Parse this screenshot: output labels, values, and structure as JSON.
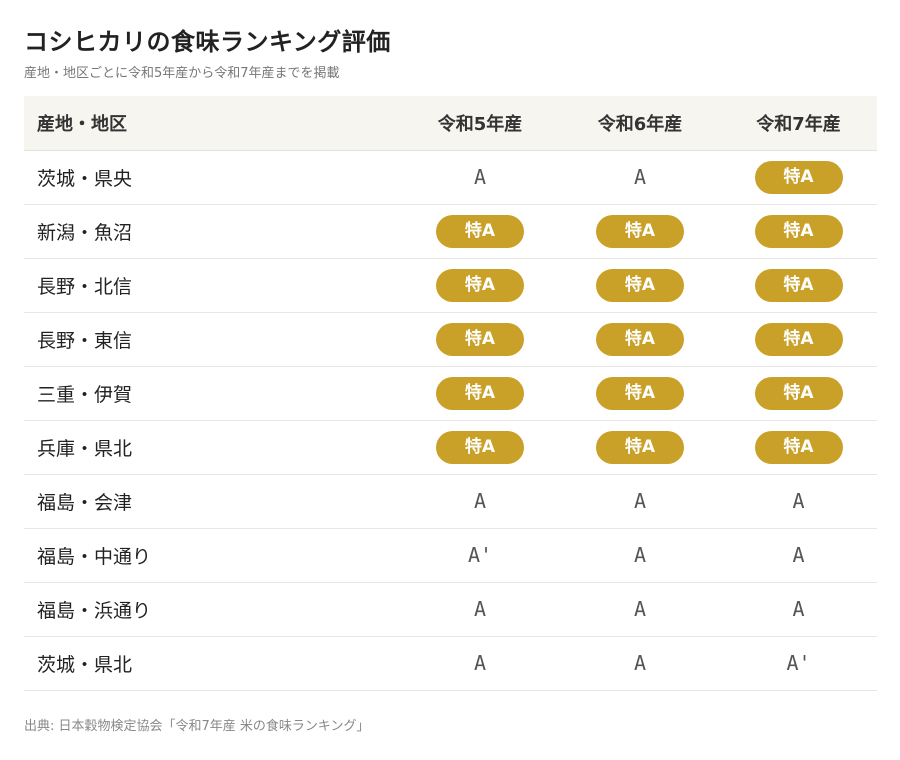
{
  "title": "コシヒカリの食味ランキング評価",
  "subtitle": "産地・地区ごとに令和5年産から令和7年産までを掲載",
  "colors": {
    "badge": "#c9a028",
    "header_bg": "#f6f5f0"
  },
  "table": {
    "headers": [
      "産地・地区",
      "令和5年産",
      "令和6年産",
      "令和7年産"
    ],
    "rows": [
      {
        "region": "茨城・県央",
        "ratings": [
          "A",
          "A",
          "特A"
        ]
      },
      {
        "region": "新潟・魚沼",
        "ratings": [
          "特A",
          "特A",
          "特A"
        ]
      },
      {
        "region": "長野・北信",
        "ratings": [
          "特A",
          "特A",
          "特A"
        ]
      },
      {
        "region": "長野・東信",
        "ratings": [
          "特A",
          "特A",
          "特A"
        ]
      },
      {
        "region": "三重・伊賀",
        "ratings": [
          "特A",
          "特A",
          "特A"
        ]
      },
      {
        "region": "兵庫・県北",
        "ratings": [
          "特A",
          "特A",
          "特A"
        ]
      },
      {
        "region": "福島・会津",
        "ratings": [
          "A",
          "A",
          "A"
        ]
      },
      {
        "region": "福島・中通り",
        "ratings": [
          "A'",
          "A",
          "A"
        ]
      },
      {
        "region": "福島・浜通り",
        "ratings": [
          "A",
          "A",
          "A"
        ]
      },
      {
        "region": "茨城・県北",
        "ratings": [
          "A",
          "A",
          "A'"
        ]
      }
    ]
  },
  "source": "出典: 日本穀物検定協会「令和7年産 米の食味ランキング」"
}
